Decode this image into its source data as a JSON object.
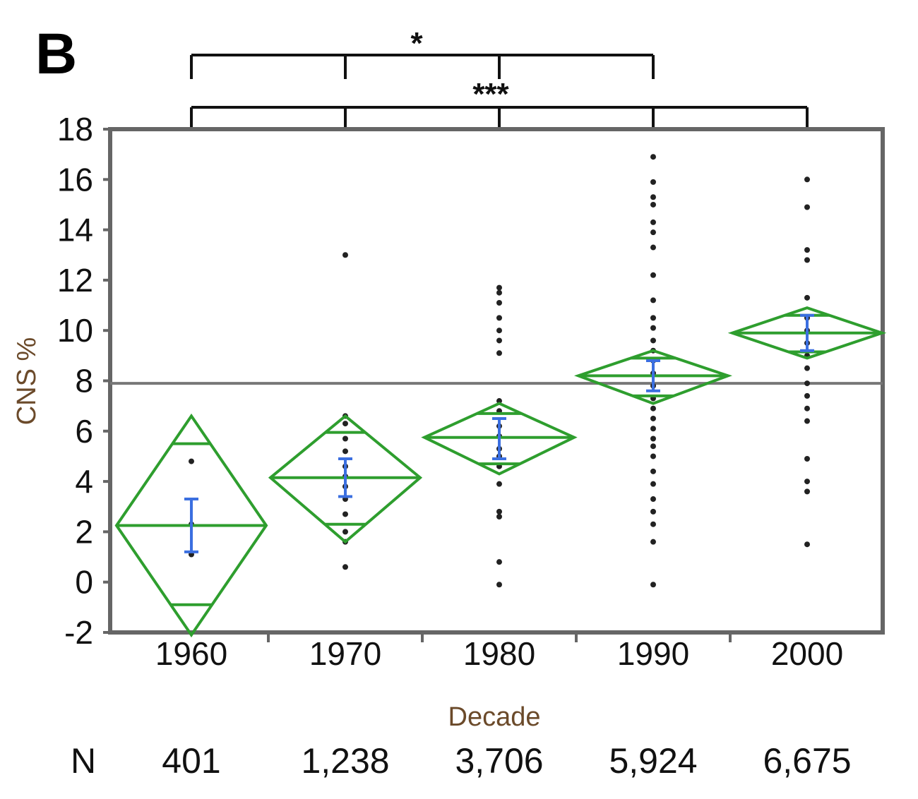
{
  "panel_label": "B",
  "colors": {
    "diamond": "#2e9e2e",
    "ci_bar": "#3b6fe0",
    "points": "#222222",
    "grand_mean": "#777777",
    "frame": "#666666"
  },
  "significance": [
    {
      "label": "*",
      "from": "1960",
      "to": "1990"
    },
    {
      "label": "***",
      "from": "1960",
      "to": "2000"
    }
  ],
  "n_row": {
    "label": "N",
    "values": [
      "401",
      "1,238",
      "3,706",
      "5,924",
      "6,675"
    ]
  },
  "chart_data": {
    "type": "scatter",
    "xlabel": "Decade",
    "ylabel": "CNS %",
    "categories": [
      "1960",
      "1970",
      "1980",
      "1990",
      "2000"
    ],
    "ylim": [
      -2,
      18
    ],
    "yticks": [
      "18",
      "16",
      "14",
      "12",
      "10",
      "8",
      "6",
      "4",
      "2",
      "0",
      "-2"
    ],
    "grid": false,
    "grand_mean": 7.9,
    "groups": [
      {
        "category": "1960",
        "mean": 2.25,
        "ci_low": -2.1,
        "ci_high": 6.6,
        "overlap_low": -0.9,
        "overlap_high": 5.5,
        "error_low": 1.2,
        "error_high": 3.3,
        "points": [
          1.1,
          2.3,
          4.8
        ]
      },
      {
        "category": "1970",
        "mean": 4.15,
        "ci_low": 1.6,
        "ci_high": 6.6,
        "overlap_low": 2.3,
        "overlap_high": 5.95,
        "error_low": 3.4,
        "error_high": 4.9,
        "points": [
          0.6,
          1.6,
          2.0,
          2.7,
          3.3,
          3.8,
          4.2,
          4.6,
          5.2,
          5.7,
          6.3,
          6.6,
          13.0
        ]
      },
      {
        "category": "1980",
        "mean": 5.75,
        "ci_low": 4.3,
        "ci_high": 7.1,
        "overlap_low": 4.7,
        "overlap_high": 6.7,
        "error_low": 4.9,
        "error_high": 6.5,
        "points": [
          -0.1,
          0.8,
          2.6,
          2.8,
          3.9,
          4.6,
          5.0,
          5.3,
          5.8,
          6.2,
          6.8,
          7.2,
          9.1,
          9.6,
          10.0,
          10.5,
          11.1,
          11.5,
          11.7
        ]
      },
      {
        "category": "1990",
        "mean": 8.2,
        "ci_low": 7.1,
        "ci_high": 9.2,
        "overlap_low": 7.4,
        "overlap_high": 8.9,
        "error_low": 7.6,
        "error_high": 8.8,
        "points": [
          -0.1,
          1.6,
          2.3,
          2.8,
          3.3,
          3.9,
          4.4,
          5.0,
          5.4,
          5.7,
          6.1,
          6.5,
          6.9,
          7.3,
          7.8,
          8.3,
          8.8,
          9.2,
          9.6,
          10.1,
          10.5,
          11.2,
          12.2,
          13.3,
          13.9,
          14.3,
          15.0,
          15.3,
          15.9,
          16.9
        ]
      },
      {
        "category": "2000",
        "mean": 9.9,
        "ci_low": 8.9,
        "ci_high": 10.9,
        "overlap_low": 9.15,
        "overlap_high": 10.6,
        "error_low": 9.2,
        "error_high": 10.6,
        "points": [
          1.5,
          3.6,
          4.0,
          4.9,
          6.4,
          6.9,
          7.4,
          7.9,
          8.5,
          9.0,
          9.5,
          10.0,
          10.5,
          11.3,
          12.8,
          13.2,
          14.9,
          16.0
        ]
      }
    ]
  }
}
